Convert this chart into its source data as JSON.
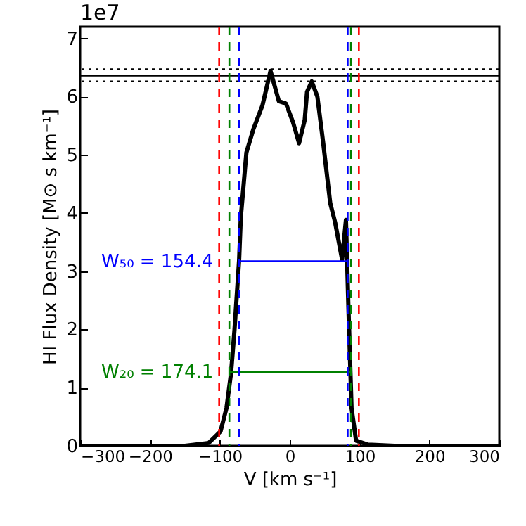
{
  "chart_data": {
    "type": "line",
    "xlabel": "V [km s⁻¹]",
    "ylabel": "HI Flux Density [M⊙ s km⁻¹]",
    "xlim": [
      -300,
      300
    ],
    "ylim": [
      0,
      7.2
    ],
    "xticks": [
      -300,
      -200,
      -100,
      0,
      100,
      200,
      300
    ],
    "yticks": [
      0,
      1,
      2,
      3,
      4,
      5,
      6,
      7
    ],
    "series": [
      {
        "color": "#000000",
        "x": [
          -300,
          -200,
          -150,
          -116,
          -99,
          -90.5,
          -84,
          -79,
          -72.4,
          -70,
          -62,
          -52,
          -39,
          -27.5,
          -15.5,
          -5.4,
          4.7,
          13.4,
          21.5,
          24.8,
          31.5,
          39.6,
          48,
          58,
          65,
          75,
          80.5,
          84,
          88.5,
          95,
          112,
          150,
          200,
          300
        ],
        "values": [
          0,
          0,
          0,
          0.05,
          0.25,
          0.65,
          1.25,
          2.0,
          3.2,
          3.93,
          5.04,
          5.44,
          5.85,
          6.44,
          5.92,
          5.88,
          5.56,
          5.2,
          5.6,
          6.08,
          6.26,
          6.0,
          5.2,
          4.17,
          3.84,
          3.2,
          3.88,
          2.4,
          0.65,
          0.09,
          0.02,
          0,
          0,
          0
        ]
      },
      {
        "color": "#0000ff",
        "x": [
          -72.4,
          83
        ],
        "values": [
          3.17,
          3.17
        ]
      },
      {
        "color": "#008000",
        "x": [
          -86.4,
          87.7
        ],
        "values": [
          1.27,
          1.27
        ]
      }
    ],
    "ref_lines": [
      {
        "axis": "y",
        "value": 6.36,
        "color": "#000000",
        "line_style": "solid"
      },
      {
        "axis": "y",
        "value": 6.47,
        "color": "#000000",
        "line_style": "dotted"
      },
      {
        "axis": "y",
        "value": 6.26,
        "color": "#000000",
        "line_style": "dotted"
      },
      {
        "axis": "x",
        "value": -101,
        "color": "#ff0000",
        "line_style": "dashed"
      },
      {
        "axis": "x",
        "value": 99,
        "color": "#ff0000",
        "line_style": "dashed"
      },
      {
        "axis": "x",
        "value": -86.4,
        "color": "#008000",
        "line_style": "dashed"
      },
      {
        "axis": "x",
        "value": 87.7,
        "color": "#008000",
        "line_style": "dashed"
      },
      {
        "axis": "x",
        "value": -72.4,
        "color": "#0000ff",
        "line_style": "dashed"
      },
      {
        "axis": "x",
        "value": 83,
        "color": "#0000ff",
        "line_style": "dashed"
      }
    ],
    "annotations": [
      "1e7",
      "W₅₀ = 154.4",
      "W₂₀ = 174.1"
    ]
  }
}
